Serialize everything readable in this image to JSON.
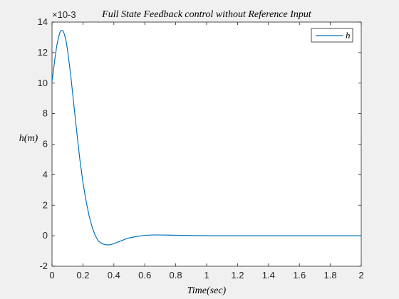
{
  "chart_data": {
    "type": "line",
    "title": "Full State Feedback control without Reference Input",
    "xlabel": "Time(sec)",
    "ylabel": "h(m)",
    "y_scale_label": "×10-3",
    "xlim": [
      0,
      2
    ],
    "ylim": [
      -2,
      14
    ],
    "xticks": [
      "0",
      "0.2",
      "0.4",
      "0.6",
      "0.8",
      "1",
      "1.2",
      "1.4",
      "1.6",
      "1.8",
      "2"
    ],
    "yticks": [
      "-2",
      "0",
      "2",
      "4",
      "6",
      "8",
      "10",
      "12",
      "14"
    ],
    "grid": false,
    "legend_position": "top-right",
    "series": [
      {
        "name": "h",
        "color": "#0072bd",
        "x": [
          0,
          0.01,
          0.02,
          0.03,
          0.04,
          0.05,
          0.06,
          0.07,
          0.08,
          0.09,
          0.1,
          0.12,
          0.14,
          0.16,
          0.18,
          0.2,
          0.22,
          0.24,
          0.26,
          0.28,
          0.3,
          0.32,
          0.34,
          0.36,
          0.38,
          0.4,
          0.42,
          0.44,
          0.46,
          0.48,
          0.5,
          0.55,
          0.6,
          0.65,
          0.7,
          0.75,
          0.8,
          0.9,
          1.0,
          1.2,
          1.4,
          1.6,
          1.8,
          2.0
        ],
        "y": [
          10.1,
          10.9,
          11.7,
          12.4,
          12.9,
          13.3,
          13.45,
          13.45,
          13.2,
          12.8,
          12.2,
          10.6,
          8.7,
          6.8,
          5.0,
          3.5,
          2.3,
          1.3,
          0.55,
          0.0,
          -0.35,
          -0.5,
          -0.58,
          -0.6,
          -0.58,
          -0.52,
          -0.44,
          -0.36,
          -0.28,
          -0.2,
          -0.14,
          -0.04,
          0.02,
          0.05,
          0.05,
          0.04,
          0.03,
          0.01,
          0.0,
          0.0,
          0.0,
          0.0,
          0.0,
          0.0
        ]
      }
    ]
  }
}
